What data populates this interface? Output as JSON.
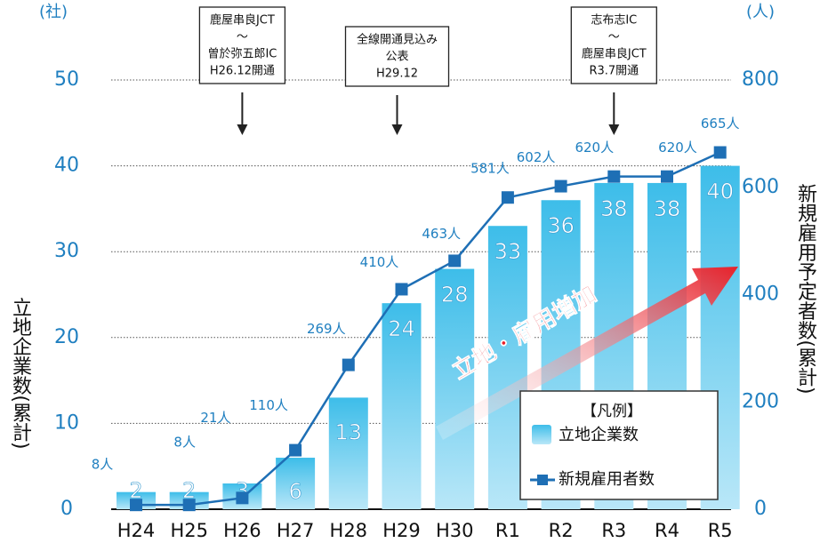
{
  "chart_data": {
    "type": "bar_line",
    "categories": [
      "H24",
      "H25",
      "H26",
      "H27",
      "H28",
      "H29",
      "H30",
      "R1",
      "R2",
      "R3",
      "R4",
      "R5"
    ],
    "series": [
      {
        "name": "立地企業数",
        "type": "bar",
        "color": "#4cc3ee",
        "values": [
          2,
          2,
          3,
          6,
          13,
          24,
          28,
          33,
          36,
          38,
          38,
          40
        ]
      },
      {
        "name": "新規雇用者数",
        "type": "line",
        "axis": "y2",
        "color": "#1e6fb5",
        "values": [
          8,
          8,
          21,
          110,
          269,
          410,
          463,
          581,
          602,
          620,
          620,
          665
        ],
        "value_labels": [
          "8人",
          "8人",
          "21人",
          "110人",
          "269人",
          "410人",
          "463人",
          "581人",
          "602人",
          "620人",
          "620人",
          "665人"
        ]
      }
    ],
    "ylim": [
      0,
      50
    ],
    "yticks": [
      0,
      10,
      20,
      30,
      40,
      50
    ],
    "y_unit": "(社)",
    "y_label": "立地企業数(累計)",
    "y2lim": [
      0,
      800
    ],
    "y2ticks": [
      0,
      200,
      400,
      600,
      800
    ],
    "y2_unit": "(人)",
    "y2_label": "新規雇用予定者数(累計)",
    "grid": true,
    "annotations": [
      {
        "category": "H26",
        "lines": [
          "鹿屋串良JCT",
          "～",
          "曽於弥五郎IC",
          "H26.12開通"
        ]
      },
      {
        "category": "H29",
        "lines": [
          "全線開通見込み",
          "公表",
          "H29.12"
        ]
      },
      {
        "category": "R3",
        "lines": [
          "志布志IC",
          "～",
          "鹿屋串良JCT",
          "R3.7開通"
        ]
      }
    ],
    "arrow_text": "立地・雇用増加",
    "legend_title": "【凡例】"
  }
}
